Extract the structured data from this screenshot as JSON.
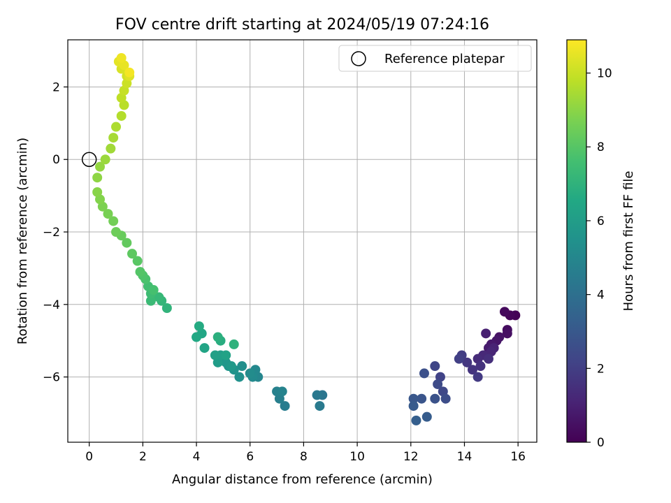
{
  "chart_data": {
    "type": "scatter",
    "title": "FOV centre drift starting at 2024/05/19 07:24:16",
    "xlabel": "Angular distance from reference (arcmin)",
    "ylabel": "Rotation from reference (arcmin)",
    "xlim": [
      -0.8,
      16.7
    ],
    "ylim": [
      -7.8,
      3.3
    ],
    "xticks": [
      0,
      2,
      4,
      6,
      8,
      10,
      12,
      14,
      16
    ],
    "yticks": [
      -6,
      -4,
      -2,
      0,
      2
    ],
    "grid": true,
    "colormap": "viridis",
    "colorbar": {
      "label": "Hours from first FF file",
      "range": [
        0,
        10.9
      ],
      "ticks": [
        0,
        2,
        4,
        6,
        8,
        10
      ]
    },
    "legend": {
      "placement": "top-right",
      "entries": [
        "Reference platepar"
      ]
    },
    "reference_point": {
      "x": 0,
      "y": 0
    },
    "points": [
      [
        15.9,
        -4.3,
        0.05
      ],
      [
        15.7,
        -4.3,
        0.15
      ],
      [
        15.5,
        -4.2,
        0.25
      ],
      [
        15.6,
        -4.7,
        0.35
      ],
      [
        15.6,
        -4.8,
        0.45
      ],
      [
        15.3,
        -4.9,
        0.55
      ],
      [
        15.2,
        -5.0,
        0.65
      ],
      [
        15.0,
        -5.1,
        0.75
      ],
      [
        14.9,
        -5.2,
        0.85
      ],
      [
        14.8,
        -4.8,
        0.95
      ],
      [
        15.1,
        -5.2,
        1.05
      ],
      [
        15.0,
        -5.3,
        1.15
      ],
      [
        14.7,
        -5.4,
        1.25
      ],
      [
        14.5,
        -5.5,
        1.35
      ],
      [
        14.9,
        -5.5,
        1.45
      ],
      [
        14.6,
        -5.7,
        1.55
      ],
      [
        14.3,
        -5.8,
        1.65
      ],
      [
        14.1,
        -5.6,
        1.75
      ],
      [
        14.5,
        -6.0,
        1.85
      ],
      [
        13.9,
        -5.4,
        1.95
      ],
      [
        13.8,
        -5.5,
        2.05
      ],
      [
        13.1,
        -6.0,
        2.15
      ],
      [
        12.9,
        -5.7,
        2.25
      ],
      [
        13.2,
        -6.4,
        2.35
      ],
      [
        13.0,
        -6.2,
        2.45
      ],
      [
        13.3,
        -6.6,
        2.55
      ],
      [
        12.5,
        -5.9,
        2.65
      ],
      [
        12.9,
        -6.6,
        2.75
      ],
      [
        12.4,
        -6.6,
        2.85
      ],
      [
        12.1,
        -6.6,
        2.95
      ],
      [
        12.1,
        -6.8,
        3.05
      ],
      [
        12.6,
        -7.1,
        3.15
      ],
      [
        12.2,
        -7.2,
        3.25
      ],
      [
        8.7,
        -6.5,
        4.25
      ],
      [
        8.5,
        -6.5,
        4.35
      ],
      [
        8.6,
        -6.8,
        4.45
      ],
      [
        7.3,
        -6.8,
        4.55
      ],
      [
        7.1,
        -6.6,
        4.65
      ],
      [
        7.0,
        -6.4,
        4.75
      ],
      [
        7.2,
        -6.4,
        4.85
      ],
      [
        6.3,
        -6.0,
        4.95
      ],
      [
        6.2,
        -5.8,
        5.05
      ],
      [
        6.1,
        -6.0,
        5.15
      ],
      [
        6.0,
        -5.9,
        5.25
      ],
      [
        5.7,
        -5.7,
        5.35
      ],
      [
        5.6,
        -6.0,
        5.45
      ],
      [
        5.4,
        -5.8,
        5.55
      ],
      [
        5.2,
        -5.7,
        5.65
      ],
      [
        5.1,
        -5.6,
        5.75
      ],
      [
        5.3,
        -5.7,
        5.85
      ],
      [
        4.8,
        -5.6,
        5.95
      ],
      [
        4.9,
        -5.4,
        6.05
      ],
      [
        4.7,
        -5.4,
        6.15
      ],
      [
        5.1,
        -5.4,
        6.25
      ],
      [
        4.3,
        -5.2,
        6.35
      ],
      [
        4.2,
        -4.8,
        6.45
      ],
      [
        4.0,
        -4.9,
        6.55
      ],
      [
        4.1,
        -4.6,
        6.65
      ],
      [
        4.9,
        -5.0,
        6.75
      ],
      [
        4.8,
        -4.9,
        6.85
      ],
      [
        5.4,
        -5.1,
        6.95
      ],
      [
        2.9,
        -4.1,
        7.05
      ],
      [
        2.7,
        -3.9,
        7.15
      ],
      [
        2.6,
        -3.8,
        7.25
      ],
      [
        2.3,
        -3.9,
        7.35
      ],
      [
        2.3,
        -3.7,
        7.45
      ],
      [
        2.2,
        -3.5,
        7.55
      ],
      [
        2.4,
        -3.6,
        7.65
      ],
      [
        2.1,
        -3.3,
        7.75
      ],
      [
        2.0,
        -3.2,
        7.85
      ],
      [
        1.9,
        -3.1,
        7.95
      ],
      [
        1.8,
        -2.8,
        8.05
      ],
      [
        1.6,
        -2.6,
        8.15
      ],
      [
        1.4,
        -2.3,
        8.25
      ],
      [
        1.2,
        -2.1,
        8.35
      ],
      [
        1.0,
        -2.0,
        8.45
      ],
      [
        0.9,
        -1.7,
        8.55
      ],
      [
        0.7,
        -1.5,
        8.65
      ],
      [
        0.5,
        -1.3,
        8.75
      ],
      [
        0.4,
        -1.1,
        8.85
      ],
      [
        0.3,
        -0.9,
        8.95
      ],
      [
        0.3,
        -0.5,
        9.05
      ],
      [
        0.4,
        -0.2,
        9.15
      ],
      [
        0.6,
        0.0,
        9.25
      ],
      [
        0.8,
        0.3,
        9.35
      ],
      [
        0.9,
        0.6,
        9.45
      ],
      [
        1.0,
        0.9,
        9.55
      ],
      [
        1.2,
        1.2,
        9.65
      ],
      [
        1.3,
        1.5,
        9.75
      ],
      [
        1.2,
        1.7,
        9.85
      ],
      [
        1.3,
        1.9,
        9.95
      ],
      [
        1.4,
        2.1,
        10.05
      ],
      [
        1.4,
        2.3,
        10.15
      ],
      [
        1.2,
        2.5,
        10.25
      ],
      [
        1.5,
        2.3,
        10.35
      ],
      [
        1.1,
        2.7,
        10.45
      ],
      [
        1.3,
        2.6,
        10.55
      ],
      [
        1.2,
        2.8,
        10.65
      ],
      [
        1.5,
        2.4,
        10.75
      ]
    ]
  }
}
